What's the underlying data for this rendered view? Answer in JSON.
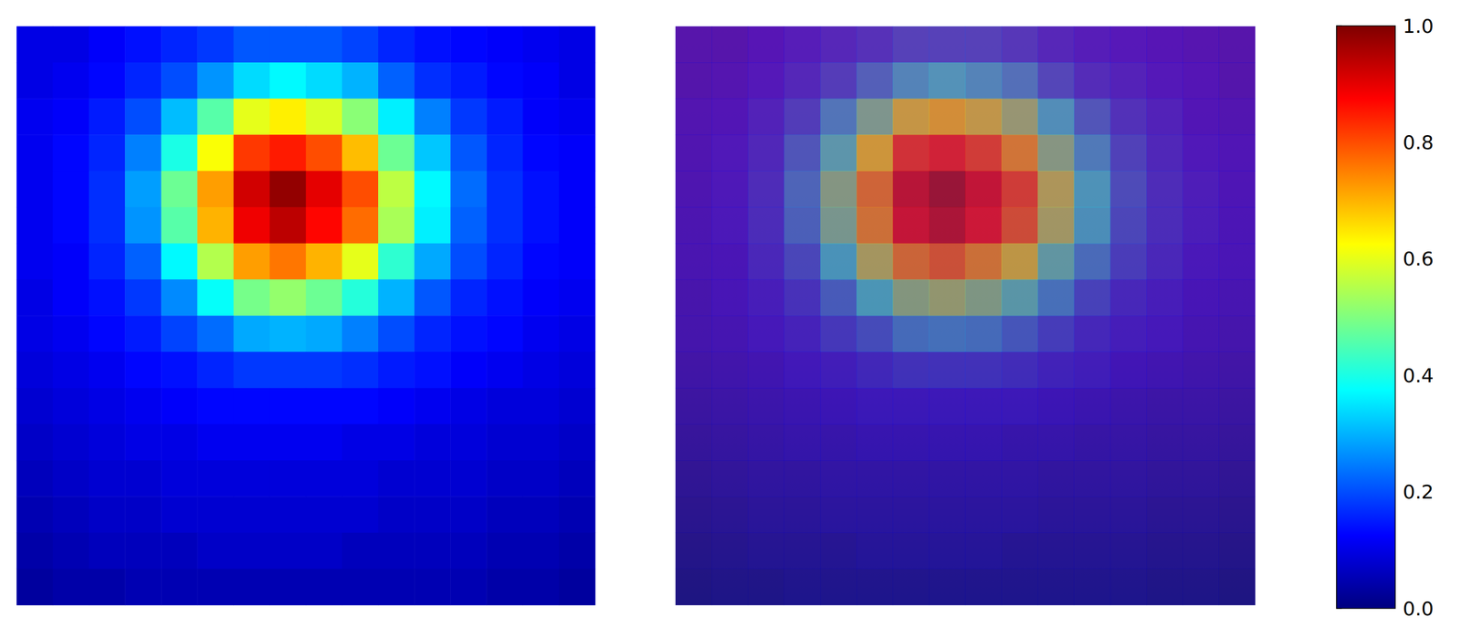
{
  "chart_data": {
    "type": "heatmap",
    "tick_labels": false,
    "cells": [
      [
        0.1,
        0.1,
        0.12,
        0.14,
        0.16,
        0.18,
        0.21,
        0.21,
        0.21,
        0.19,
        0.16,
        0.14,
        0.13,
        0.12,
        0.11,
        0.1
      ],
      [
        0.1,
        0.11,
        0.13,
        0.16,
        0.2,
        0.27,
        0.34,
        0.37,
        0.34,
        0.3,
        0.22,
        0.17,
        0.15,
        0.13,
        0.12,
        0.1
      ],
      [
        0.11,
        0.12,
        0.15,
        0.2,
        0.31,
        0.46,
        0.6,
        0.64,
        0.59,
        0.51,
        0.36,
        0.25,
        0.18,
        0.15,
        0.12,
        0.11
      ],
      [
        0.11,
        0.13,
        0.16,
        0.25,
        0.4,
        0.62,
        0.82,
        0.85,
        0.8,
        0.69,
        0.48,
        0.32,
        0.21,
        0.16,
        0.13,
        0.12
      ],
      [
        0.11,
        0.13,
        0.17,
        0.28,
        0.48,
        0.72,
        0.92,
        0.98,
        0.9,
        0.8,
        0.56,
        0.37,
        0.23,
        0.17,
        0.14,
        0.12
      ],
      [
        0.11,
        0.13,
        0.17,
        0.27,
        0.46,
        0.7,
        0.89,
        0.94,
        0.87,
        0.77,
        0.54,
        0.36,
        0.22,
        0.17,
        0.14,
        0.12
      ],
      [
        0.11,
        0.12,
        0.16,
        0.22,
        0.37,
        0.55,
        0.72,
        0.76,
        0.7,
        0.6,
        0.42,
        0.29,
        0.2,
        0.16,
        0.13,
        0.12
      ],
      [
        0.1,
        0.12,
        0.14,
        0.18,
        0.26,
        0.38,
        0.49,
        0.52,
        0.48,
        0.41,
        0.3,
        0.21,
        0.16,
        0.14,
        0.12,
        0.11
      ],
      [
        0.1,
        0.11,
        0.13,
        0.15,
        0.19,
        0.23,
        0.29,
        0.3,
        0.29,
        0.25,
        0.2,
        0.16,
        0.14,
        0.13,
        0.11,
        0.1
      ],
      [
        0.09,
        0.1,
        0.11,
        0.13,
        0.14,
        0.16,
        0.18,
        0.18,
        0.18,
        0.17,
        0.15,
        0.14,
        0.12,
        0.11,
        0.1,
        0.09
      ],
      [
        0.08,
        0.09,
        0.1,
        0.11,
        0.12,
        0.13,
        0.13,
        0.13,
        0.13,
        0.13,
        0.12,
        0.11,
        0.1,
        0.09,
        0.09,
        0.08
      ],
      [
        0.07,
        0.08,
        0.09,
        0.1,
        0.1,
        0.11,
        0.11,
        0.11,
        0.11,
        0.1,
        0.1,
        0.09,
        0.09,
        0.08,
        0.08,
        0.07
      ],
      [
        0.06,
        0.07,
        0.08,
        0.08,
        0.09,
        0.09,
        0.09,
        0.09,
        0.09,
        0.09,
        0.08,
        0.08,
        0.08,
        0.07,
        0.07,
        0.06
      ],
      [
        0.05,
        0.06,
        0.07,
        0.07,
        0.08,
        0.08,
        0.08,
        0.08,
        0.08,
        0.08,
        0.07,
        0.07,
        0.07,
        0.06,
        0.06,
        0.05
      ],
      [
        0.04,
        0.05,
        0.06,
        0.06,
        0.06,
        0.07,
        0.07,
        0.07,
        0.07,
        0.06,
        0.06,
        0.06,
        0.06,
        0.05,
        0.05,
        0.04
      ],
      [
        0.03,
        0.04,
        0.04,
        0.05,
        0.05,
        0.05,
        0.05,
        0.05,
        0.05,
        0.05,
        0.05,
        0.05,
        0.05,
        0.04,
        0.04,
        0.03
      ]
    ],
    "colorbar": {
      "range": [
        0,
        1
      ],
      "ticks": [
        {
          "value": 0,
          "label": "0.0"
        },
        0.2,
        0.4,
        0.6,
        0.8,
        {
          "value": 1,
          "label": "1.0"
        }
      ]
    }
  }
}
